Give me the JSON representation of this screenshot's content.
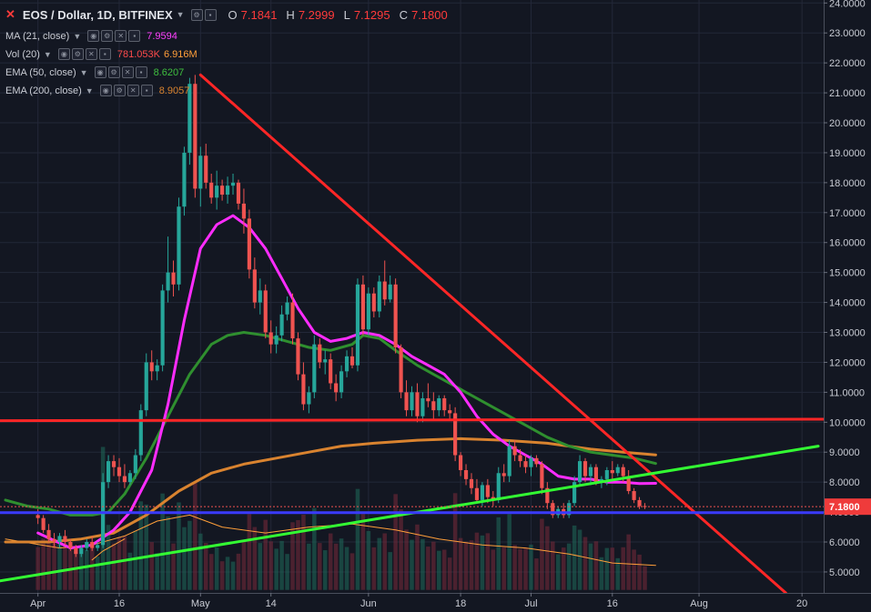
{
  "header": {
    "symbol": "EOS / Dollar, 1D, BITFINEX",
    "ohlc": [
      {
        "k": "O",
        "v": "7.1841"
      },
      {
        "k": "H",
        "v": "7.2999"
      },
      {
        "k": "L",
        "v": "7.1295"
      },
      {
        "k": "C",
        "v": "7.1800"
      }
    ]
  },
  "indicators": [
    {
      "label": "MA (21, close)",
      "values": [
        "7.9594"
      ],
      "colors": [
        "#ff40ff"
      ]
    },
    {
      "label": "Vol (20)",
      "values": [
        "781.053K",
        "6.916M"
      ],
      "colors": [
        "#ff4b4b",
        "#ff9f3a"
      ]
    },
    {
      "label": "EMA (50, close)",
      "values": [
        "8.6207"
      ],
      "colors": [
        "#3fbf3f"
      ]
    },
    {
      "label": "EMA (200, close)",
      "values": [
        "8.9057"
      ],
      "colors": [
        "#d9832f"
      ]
    }
  ],
  "price_badge": "7.1800",
  "chart_data": {
    "type": "candlestick",
    "y_ticks": [
      "24.0000",
      "23.0000",
      "22.0000",
      "21.0000",
      "20.0000",
      "19.0000",
      "18.0000",
      "17.0000",
      "16.0000",
      "15.0000",
      "14.0000",
      "13.0000",
      "12.0000",
      "11.0000",
      "10.0000",
      "9.0000",
      "8.0000",
      "7.0000",
      "6.0000",
      "5.0000"
    ],
    "ylim": [
      4.3,
      24.1
    ],
    "x_ticks": [
      {
        "label": "Apr",
        "x": 0
      },
      {
        "label": "16",
        "x": 15
      },
      {
        "label": "May",
        "x": 30
      },
      {
        "label": "14",
        "x": 43
      },
      {
        "label": "Jun",
        "x": 61
      },
      {
        "label": "18",
        "x": 78
      },
      {
        "label": "Jul",
        "x": 91
      },
      {
        "label": "16",
        "x": 106
      },
      {
        "label": "Aug",
        "x": 122
      },
      {
        "label": "20",
        "x": 141
      }
    ],
    "xlim": [
      -7,
      145
    ],
    "candles": [
      [
        6.9,
        7.1,
        6.6,
        6.8
      ],
      [
        6.8,
        6.9,
        6.3,
        6.4
      ],
      [
        6.4,
        6.6,
        6.0,
        6.1
      ],
      [
        6.1,
        6.3,
        5.8,
        6.0
      ],
      [
        6.0,
        6.3,
        5.8,
        6.2
      ],
      [
        6.2,
        6.4,
        5.9,
        6.0
      ],
      [
        6.0,
        6.1,
        5.7,
        5.8
      ],
      [
        5.8,
        5.9,
        5.5,
        5.6
      ],
      [
        5.6,
        5.9,
        5.5,
        5.8
      ],
      [
        5.8,
        6.1,
        5.7,
        6.0
      ],
      [
        6.0,
        6.2,
        5.7,
        5.8
      ],
      [
        5.8,
        6.0,
        5.7,
        5.9
      ],
      [
        5.9,
        8.3,
        5.8,
        8.0
      ],
      [
        8.0,
        8.9,
        7.8,
        8.7
      ],
      [
        8.7,
        8.9,
        8.2,
        8.5
      ],
      [
        8.5,
        8.8,
        8.0,
        8.2
      ],
      [
        8.2,
        8.6,
        7.8,
        8.0
      ],
      [
        8.0,
        8.4,
        7.9,
        8.3
      ],
      [
        8.3,
        9.1,
        8.1,
        8.9
      ],
      [
        8.9,
        10.6,
        8.7,
        10.4
      ],
      [
        10.4,
        12.3,
        10.2,
        12.0
      ],
      [
        12.0,
        12.4,
        11.4,
        11.7
      ],
      [
        11.7,
        12.1,
        11.4,
        11.9
      ],
      [
        11.9,
        14.6,
        11.7,
        14.4
      ],
      [
        14.4,
        16.2,
        14.0,
        15.0
      ],
      [
        15.0,
        15.4,
        14.2,
        14.6
      ],
      [
        14.6,
        17.5,
        14.4,
        17.2
      ],
      [
        17.2,
        19.2,
        16.9,
        19.0
      ],
      [
        19.0,
        21.5,
        18.6,
        21.3
      ],
      [
        21.3,
        21.6,
        17.5,
        17.8
      ],
      [
        17.8,
        19.2,
        17.2,
        18.9
      ],
      [
        18.9,
        19.3,
        17.8,
        18.0
      ],
      [
        18.0,
        18.3,
        17.3,
        17.5
      ],
      [
        17.5,
        18.4,
        17.1,
        17.9
      ],
      [
        17.9,
        18.1,
        17.4,
        17.6
      ],
      [
        17.6,
        18.2,
        17.3,
        17.9
      ],
      [
        17.9,
        18.3,
        17.6,
        18.0
      ],
      [
        18.0,
        18.1,
        17.1,
        17.3
      ],
      [
        17.3,
        17.8,
        16.3,
        16.8
      ],
      [
        16.8,
        17.1,
        14.8,
        15.1
      ],
      [
        15.1,
        15.5,
        13.8,
        14.0
      ],
      [
        14.0,
        14.8,
        13.6,
        14.4
      ],
      [
        14.4,
        14.6,
        12.8,
        13.0
      ],
      [
        13.0,
        13.4,
        12.3,
        12.6
      ],
      [
        12.6,
        13.2,
        12.3,
        12.9
      ],
      [
        12.9,
        13.9,
        12.7,
        13.6
      ],
      [
        13.6,
        14.2,
        13.4,
        14.0
      ],
      [
        14.0,
        14.3,
        12.6,
        12.8
      ],
      [
        12.8,
        13.0,
        11.4,
        11.6
      ],
      [
        11.6,
        12.0,
        10.4,
        10.6
      ],
      [
        10.6,
        11.2,
        10.3,
        11.0
      ],
      [
        11.0,
        12.9,
        10.8,
        12.6
      ],
      [
        12.6,
        12.8,
        11.8,
        12.0
      ],
      [
        12.0,
        12.4,
        11.6,
        12.1
      ],
      [
        12.1,
        12.3,
        11.1,
        11.3
      ],
      [
        11.3,
        11.6,
        10.7,
        11.0
      ],
      [
        11.0,
        11.9,
        10.8,
        11.7
      ],
      [
        11.7,
        12.4,
        11.5,
        12.2
      ],
      [
        12.2,
        12.5,
        11.8,
        11.9
      ],
      [
        11.9,
        14.8,
        11.7,
        14.6
      ],
      [
        14.6,
        14.9,
        12.9,
        13.1
      ],
      [
        13.1,
        14.5,
        12.9,
        14.3
      ],
      [
        14.3,
        14.5,
        13.5,
        13.7
      ],
      [
        13.7,
        14.9,
        13.5,
        14.7
      ],
      [
        14.7,
        15.4,
        13.9,
        14.1
      ],
      [
        14.1,
        14.9,
        14.0,
        14.6
      ],
      [
        14.6,
        14.8,
        12.3,
        12.5
      ],
      [
        12.5,
        12.6,
        10.8,
        11.0
      ],
      [
        11.0,
        11.4,
        10.2,
        10.4
      ],
      [
        10.4,
        11.2,
        10.2,
        11.0
      ],
      [
        11.0,
        11.3,
        10.0,
        10.2
      ],
      [
        10.2,
        11.0,
        10.0,
        10.8
      ],
      [
        10.8,
        11.3,
        10.5,
        10.7
      ],
      [
        10.7,
        11.0,
        10.1,
        10.4
      ],
      [
        10.4,
        10.9,
        10.2,
        10.8
      ],
      [
        10.8,
        10.9,
        10.2,
        10.4
      ],
      [
        10.4,
        10.6,
        10.1,
        10.3
      ],
      [
        10.3,
        10.5,
        8.7,
        8.9
      ],
      [
        8.9,
        9.0,
        8.2,
        8.4
      ],
      [
        8.4,
        8.6,
        7.9,
        8.1
      ],
      [
        8.1,
        8.3,
        7.6,
        7.8
      ],
      [
        7.8,
        8.1,
        7.3,
        7.4
      ],
      [
        7.4,
        8.0,
        7.2,
        7.9
      ],
      [
        7.9,
        8.1,
        7.3,
        7.5
      ],
      [
        7.5,
        7.7,
        7.2,
        7.4
      ],
      [
        7.4,
        8.5,
        7.3,
        8.3
      ],
      [
        8.3,
        8.6,
        8.0,
        8.2
      ],
      [
        8.2,
        9.4,
        8.0,
        9.2
      ],
      [
        9.2,
        9.4,
        8.7,
        8.9
      ],
      [
        8.9,
        9.1,
        8.5,
        8.7
      ],
      [
        8.7,
        8.9,
        8.3,
        8.5
      ],
      [
        8.5,
        8.9,
        8.2,
        8.8
      ],
      [
        8.8,
        8.9,
        8.5,
        8.6
      ],
      [
        8.6,
        8.7,
        7.6,
        7.8
      ],
      [
        7.8,
        8.0,
        7.1,
        7.3
      ],
      [
        7.3,
        7.4,
        6.8,
        6.9
      ],
      [
        6.9,
        7.2,
        6.8,
        7.1
      ],
      [
        7.1,
        7.3,
        6.8,
        6.9
      ],
      [
        6.9,
        7.4,
        6.8,
        7.3
      ],
      [
        7.3,
        8.2,
        7.2,
        8.0
      ],
      [
        8.0,
        8.9,
        7.9,
        8.7
      ],
      [
        8.7,
        8.8,
        8.0,
        8.2
      ],
      [
        8.2,
        8.6,
        7.9,
        8.5
      ],
      [
        8.5,
        8.6,
        7.9,
        8.0
      ],
      [
        8.0,
        8.2,
        7.8,
        8.1
      ],
      [
        8.1,
        8.5,
        7.9,
        8.4
      ],
      [
        8.4,
        8.7,
        8.1,
        8.3
      ],
      [
        8.3,
        8.6,
        8.2,
        8.5
      ],
      [
        8.5,
        8.6,
        8.0,
        8.2
      ],
      [
        8.2,
        8.4,
        7.6,
        7.7
      ],
      [
        7.7,
        7.8,
        7.3,
        7.4
      ],
      [
        7.4,
        7.5,
        7.1,
        7.2
      ],
      [
        7.2,
        7.3,
        7.1,
        7.18
      ]
    ],
    "ma21": [
      [
        0,
        6.3
      ],
      [
        6,
        5.8
      ],
      [
        10,
        5.9
      ],
      [
        14,
        6.4
      ],
      [
        17,
        7.0
      ],
      [
        21,
        8.4
      ],
      [
        24,
        10.6
      ],
      [
        27,
        13.4
      ],
      [
        30,
        15.8
      ],
      [
        33,
        16.6
      ],
      [
        36,
        16.9
      ],
      [
        39,
        16.5
      ],
      [
        42,
        15.8
      ],
      [
        45,
        14.8
      ],
      [
        48,
        13.8
      ],
      [
        51,
        13.0
      ],
      [
        54,
        12.7
      ],
      [
        57,
        12.8
      ],
      [
        60,
        13.0
      ],
      [
        63,
        12.9
      ],
      [
        66,
        12.6
      ],
      [
        69,
        12.2
      ],
      [
        72,
        11.9
      ],
      [
        75,
        11.6
      ],
      [
        78,
        11.0
      ],
      [
        81,
        10.2
      ],
      [
        84,
        9.6
      ],
      [
        87,
        9.2
      ],
      [
        90,
        8.9
      ],
      [
        93,
        8.6
      ],
      [
        96,
        8.2
      ],
      [
        99,
        8.1
      ],
      [
        102,
        8.1
      ],
      [
        105,
        8.0
      ],
      [
        108,
        8.0
      ],
      [
        111,
        7.95
      ],
      [
        114,
        7.96
      ]
    ],
    "ema50": [
      [
        -6,
        7.4
      ],
      [
        -2,
        7.2
      ],
      [
        2,
        7.1
      ],
      [
        6,
        6.9
      ],
      [
        10,
        6.9
      ],
      [
        13,
        7.0
      ],
      [
        16,
        7.6
      ],
      [
        20,
        8.8
      ],
      [
        24,
        10.2
      ],
      [
        28,
        11.6
      ],
      [
        32,
        12.6
      ],
      [
        35,
        12.9
      ],
      [
        38,
        13.0
      ],
      [
        42,
        12.9
      ],
      [
        46,
        12.7
      ],
      [
        50,
        12.5
      ],
      [
        54,
        12.4
      ],
      [
        58,
        12.6
      ],
      [
        60,
        12.9
      ],
      [
        63,
        12.8
      ],
      [
        66,
        12.4
      ],
      [
        70,
        11.9
      ],
      [
        74,
        11.5
      ],
      [
        78,
        11.1
      ],
      [
        82,
        10.7
      ],
      [
        86,
        10.3
      ],
      [
        90,
        9.9
      ],
      [
        94,
        9.5
      ],
      [
        98,
        9.2
      ],
      [
        102,
        9.0
      ],
      [
        106,
        8.9
      ],
      [
        110,
        8.8
      ],
      [
        114,
        8.62
      ]
    ],
    "ema200": [
      [
        -6,
        6.0
      ],
      [
        2,
        6.0
      ],
      [
        8,
        6.1
      ],
      [
        14,
        6.3
      ],
      [
        20,
        6.9
      ],
      [
        26,
        7.7
      ],
      [
        32,
        8.3
      ],
      [
        38,
        8.6
      ],
      [
        44,
        8.8
      ],
      [
        50,
        9.0
      ],
      [
        56,
        9.2
      ],
      [
        62,
        9.3
      ],
      [
        70,
        9.4
      ],
      [
        78,
        9.45
      ],
      [
        86,
        9.4
      ],
      [
        94,
        9.3
      ],
      [
        102,
        9.1
      ],
      [
        108,
        9.0
      ],
      [
        114,
        8.91
      ]
    ],
    "vol_ma": [
      [
        -6,
        6.1
      ],
      [
        4,
        5.8
      ],
      [
        10,
        5.9
      ],
      [
        16,
        6.2
      ],
      [
        22,
        6.7
      ],
      [
        28,
        6.9
      ],
      [
        34,
        6.5
      ],
      [
        42,
        6.3
      ],
      [
        50,
        6.5
      ],
      [
        58,
        6.6
      ],
      [
        66,
        6.4
      ],
      [
        74,
        6.1
      ],
      [
        82,
        5.9
      ],
      [
        90,
        5.8
      ],
      [
        98,
        5.6
      ],
      [
        106,
        5.3
      ],
      [
        114,
        5.22
      ]
    ],
    "vol_ma_early": [
      [
        10,
        5.4
      ],
      [
        12,
        5.7
      ],
      [
        14,
        5.9
      ],
      [
        16,
        6.1
      ]
    ],
    "trend_lines": [
      {
        "name": "falling-trendline",
        "color": "#ff2626",
        "from": [
          30,
          21.6
        ],
        "to": [
          138,
          4.3
        ],
        "width": 3
      },
      {
        "name": "rising-trendline",
        "color": "#33ff33",
        "from": [
          -7,
          4.7
        ],
        "to": [
          144,
          9.2
        ],
        "width": 3
      },
      {
        "name": "resistance-line",
        "color": "#ff2626",
        "from": [
          -7,
          10.05
        ],
        "to": [
          145,
          10.1
        ],
        "width": 3
      },
      {
        "name": "support-line",
        "color": "#3a3aff",
        "from": [
          -7,
          6.98
        ],
        "to": [
          145,
          6.98
        ],
        "width": 3
      }
    ]
  }
}
